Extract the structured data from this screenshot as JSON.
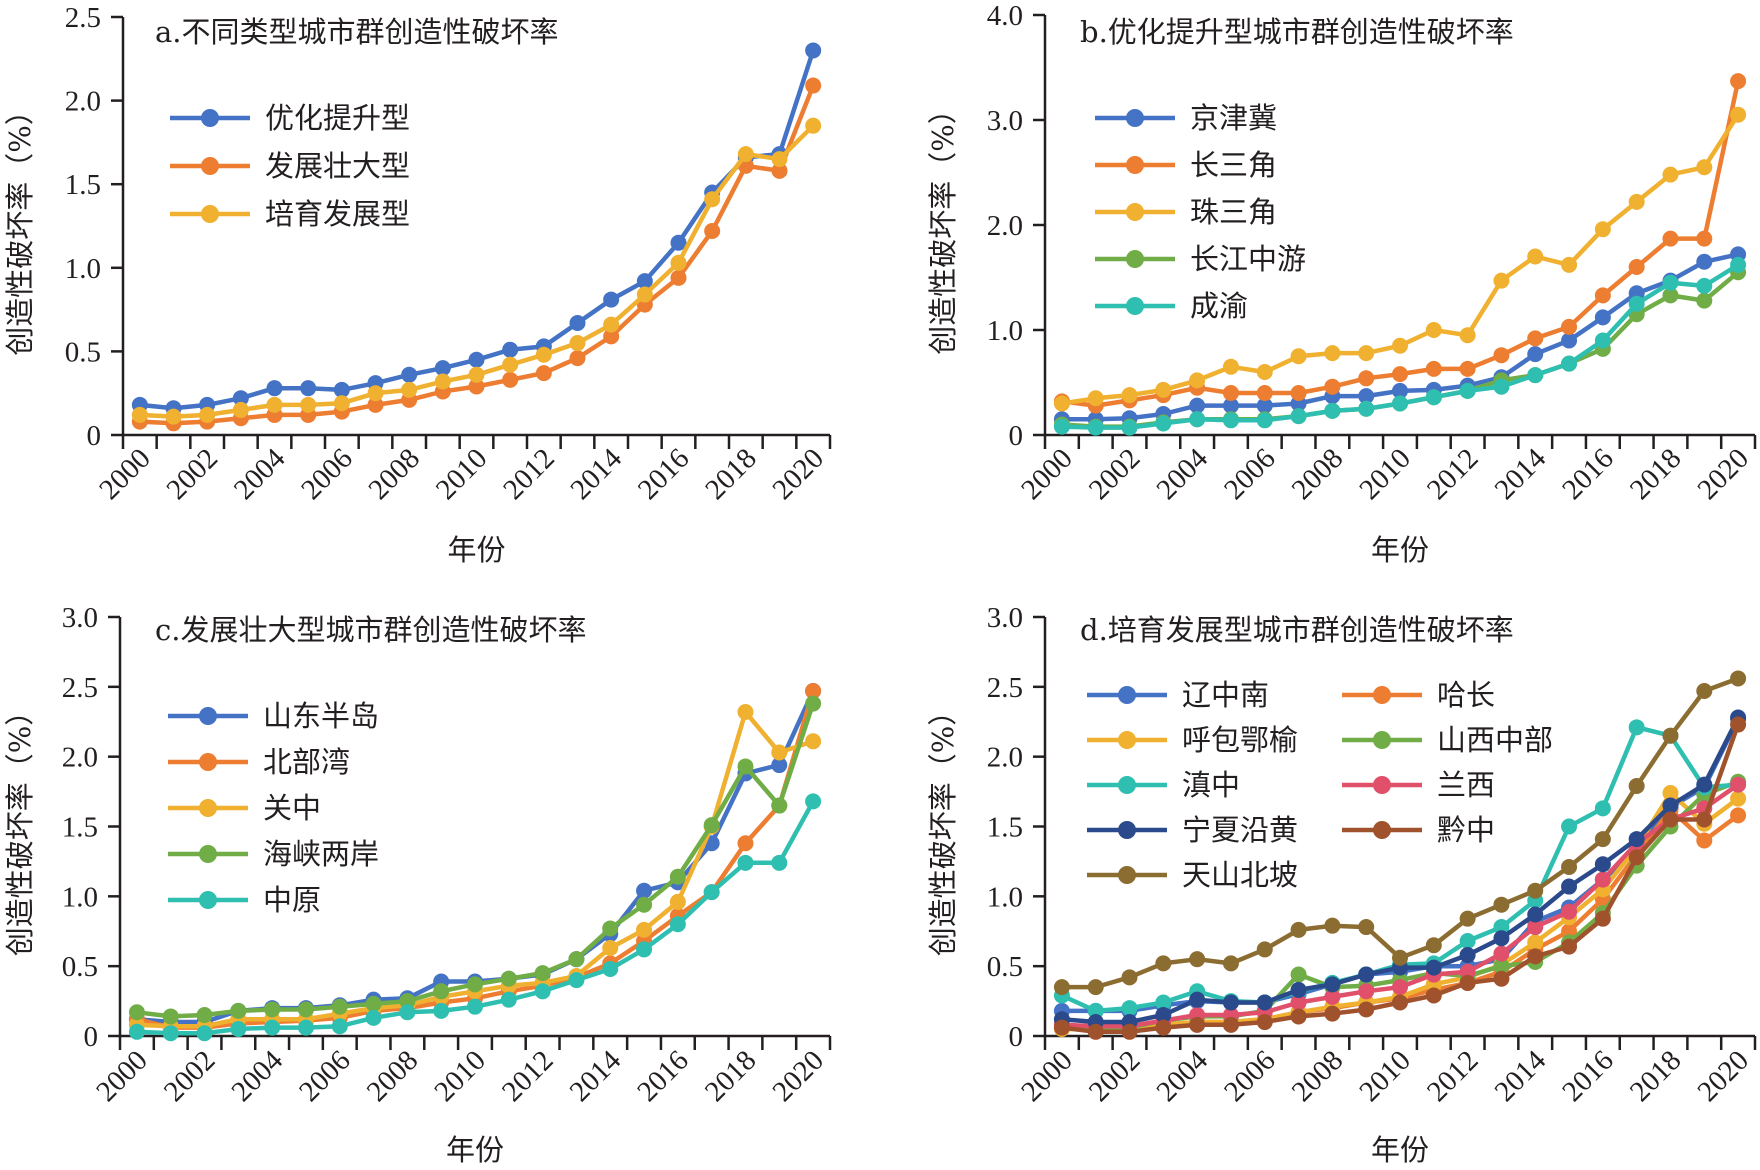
{
  "chart_data": [
    {
      "id": "a",
      "type": "line",
      "title": "a.不同类型城市群创造性破坏率",
      "xlabel": "年份",
      "ylabel": "创造性破坏率（%）",
      "ylim": [
        0,
        2.5
      ],
      "yticks": [
        0,
        0.5,
        1.0,
        1.5,
        2.0,
        2.5
      ],
      "ytick_labels": [
        "0",
        "0.5",
        "1.0",
        "1.5",
        "2.0",
        "2.5"
      ],
      "x": [
        2000,
        2001,
        2002,
        2003,
        2004,
        2005,
        2006,
        2007,
        2008,
        2009,
        2010,
        2011,
        2012,
        2013,
        2014,
        2015,
        2016,
        2017,
        2018,
        2019,
        2020
      ],
      "xtick_labels": [
        "2000",
        "2002",
        "2004",
        "2006",
        "2008",
        "2010",
        "2012",
        "2014",
        "2016",
        "2018",
        "2020"
      ],
      "grid": false,
      "legend_position": "top-left",
      "legend_columns": 1,
      "series": [
        {
          "name": "优化提升型",
          "color": "#4472c4",
          "values": [
            0.18,
            0.16,
            0.18,
            0.22,
            0.28,
            0.28,
            0.27,
            0.31,
            0.36,
            0.4,
            0.45,
            0.51,
            0.53,
            0.67,
            0.81,
            0.92,
            1.15,
            1.45,
            1.66,
            1.68,
            2.3
          ]
        },
        {
          "name": "发展壮大型",
          "color": "#ed7d31",
          "values": [
            0.08,
            0.07,
            0.08,
            0.1,
            0.12,
            0.12,
            0.14,
            0.18,
            0.21,
            0.26,
            0.29,
            0.33,
            0.37,
            0.46,
            0.59,
            0.78,
            0.94,
            1.22,
            1.61,
            1.58,
            2.09
          ]
        },
        {
          "name": "培育发展型",
          "color": "#f0b030",
          "values": [
            0.12,
            0.11,
            0.12,
            0.15,
            0.18,
            0.18,
            0.19,
            0.25,
            0.27,
            0.32,
            0.36,
            0.42,
            0.48,
            0.55,
            0.66,
            0.84,
            1.03,
            1.41,
            1.68,
            1.65,
            1.85
          ]
        }
      ]
    },
    {
      "id": "b",
      "type": "line",
      "title": "b.优化提升型城市群创造性破坏率",
      "xlabel": "年份",
      "ylabel": "创造性破坏率（%）",
      "ylim": [
        0,
        4.0
      ],
      "yticks": [
        0,
        1.0,
        2.0,
        3.0,
        4.0
      ],
      "ytick_labels": [
        "0",
        "1.0",
        "2.0",
        "3.0",
        "4.0"
      ],
      "x": [
        2000,
        2001,
        2002,
        2003,
        2004,
        2005,
        2006,
        2007,
        2008,
        2009,
        2010,
        2011,
        2012,
        2013,
        2014,
        2015,
        2016,
        2017,
        2018,
        2019,
        2020
      ],
      "xtick_labels": [
        "2000",
        "2002",
        "2004",
        "2006",
        "2008",
        "2010",
        "2012",
        "2014",
        "2016",
        "2018",
        "2020"
      ],
      "grid": false,
      "legend_position": "top-left",
      "legend_columns": 1,
      "series": [
        {
          "name": "京津冀",
          "color": "#4472c4",
          "values": [
            0.15,
            0.15,
            0.16,
            0.2,
            0.28,
            0.28,
            0.28,
            0.3,
            0.37,
            0.37,
            0.42,
            0.43,
            0.47,
            0.55,
            0.77,
            0.9,
            1.12,
            1.35,
            1.47,
            1.65,
            1.72
          ]
        },
        {
          "name": "长三角",
          "color": "#ed7d31",
          "values": [
            0.32,
            0.28,
            0.33,
            0.38,
            0.45,
            0.4,
            0.4,
            0.4,
            0.46,
            0.54,
            0.58,
            0.63,
            0.63,
            0.76,
            0.92,
            1.03,
            1.33,
            1.6,
            1.87,
            1.87,
            3.37
          ]
        },
        {
          "name": "珠三角",
          "color": "#f0b030",
          "values": [
            0.3,
            0.35,
            0.38,
            0.43,
            0.52,
            0.65,
            0.6,
            0.75,
            0.78,
            0.78,
            0.85,
            1.0,
            0.95,
            1.47,
            1.7,
            1.62,
            1.96,
            2.22,
            2.48,
            2.55,
            3.05
          ]
        },
        {
          "name": "长江中游",
          "color": "#70ad47",
          "values": [
            0.1,
            0.08,
            0.08,
            0.12,
            0.15,
            0.15,
            0.15,
            0.18,
            0.23,
            0.25,
            0.3,
            0.36,
            0.42,
            0.52,
            0.57,
            0.68,
            0.82,
            1.15,
            1.33,
            1.28,
            1.55
          ]
        },
        {
          "name": "成渝",
          "color": "#2ebfb0",
          "values": [
            0.08,
            0.07,
            0.07,
            0.11,
            0.15,
            0.14,
            0.14,
            0.18,
            0.23,
            0.25,
            0.3,
            0.36,
            0.42,
            0.46,
            0.57,
            0.68,
            0.9,
            1.25,
            1.45,
            1.42,
            1.62
          ]
        }
      ]
    },
    {
      "id": "c",
      "type": "line",
      "title": "c.发展壮大型城市群创造性破坏率",
      "xlabel": "年份",
      "ylabel": "创造性破坏率（%）",
      "ylim": [
        0,
        3.0
      ],
      "yticks": [
        0,
        0.5,
        1.0,
        1.5,
        2.0,
        2.5,
        3.0
      ],
      "ytick_labels": [
        "0",
        "0.5",
        "1.0",
        "1.5",
        "2.0",
        "2.5",
        "3.0"
      ],
      "x": [
        2000,
        2001,
        2002,
        2003,
        2004,
        2005,
        2006,
        2007,
        2008,
        2009,
        2010,
        2011,
        2012,
        2013,
        2014,
        2015,
        2016,
        2017,
        2018,
        2019,
        2020
      ],
      "xtick_labels": [
        "2000",
        "2002",
        "2004",
        "2006",
        "2008",
        "2010",
        "2012",
        "2014",
        "2016",
        "2018",
        "2020"
      ],
      "grid": false,
      "legend_position": "top-left",
      "legend_columns": 1,
      "series": [
        {
          "name": "山东半岛",
          "color": "#4472c4",
          "values": [
            0.12,
            0.1,
            0.1,
            0.18,
            0.2,
            0.2,
            0.22,
            0.26,
            0.27,
            0.39,
            0.39,
            0.41,
            0.44,
            0.55,
            0.73,
            1.04,
            1.1,
            1.38,
            1.88,
            1.94,
            2.47
          ]
        },
        {
          "name": "北部湾",
          "color": "#ed7d31",
          "values": [
            0.12,
            0.06,
            0.06,
            0.09,
            0.1,
            0.11,
            0.13,
            0.18,
            0.2,
            0.24,
            0.27,
            0.32,
            0.36,
            0.42,
            0.52,
            0.68,
            0.86,
            1.03,
            1.38,
            1.65,
            2.47
          ]
        },
        {
          "name": "关中",
          "color": "#f0b030",
          "values": [
            0.08,
            0.07,
            0.07,
            0.12,
            0.12,
            0.12,
            0.16,
            0.2,
            0.22,
            0.28,
            0.32,
            0.36,
            0.38,
            0.43,
            0.63,
            0.76,
            0.96,
            1.5,
            2.32,
            2.03,
            2.11
          ]
        },
        {
          "name": "海峡两岸",
          "color": "#70ad47",
          "values": [
            0.17,
            0.14,
            0.15,
            0.18,
            0.19,
            0.19,
            0.21,
            0.23,
            0.25,
            0.32,
            0.37,
            0.41,
            0.45,
            0.55,
            0.77,
            0.94,
            1.14,
            1.51,
            1.93,
            1.65,
            2.38
          ]
        },
        {
          "name": "中原",
          "color": "#2ebfb0",
          "values": [
            0.03,
            0.02,
            0.02,
            0.05,
            0.06,
            0.06,
            0.07,
            0.13,
            0.17,
            0.18,
            0.21,
            0.26,
            0.32,
            0.4,
            0.48,
            0.62,
            0.8,
            1.03,
            1.24,
            1.24,
            1.68
          ]
        }
      ]
    },
    {
      "id": "d",
      "type": "line",
      "title": "d.培育发展型城市群创造性破坏率",
      "xlabel": "年份",
      "ylabel": "创造性破坏率（%）",
      "ylim": [
        0,
        3.0
      ],
      "yticks": [
        0,
        0.5,
        1.0,
        1.5,
        2.0,
        2.5,
        3.0
      ],
      "ytick_labels": [
        "0",
        "0.5",
        "1.0",
        "1.5",
        "2.0",
        "2.5",
        "3.0"
      ],
      "x": [
        2000,
        2001,
        2002,
        2003,
        2004,
        2005,
        2006,
        2007,
        2008,
        2009,
        2010,
        2011,
        2012,
        2013,
        2014,
        2015,
        2016,
        2017,
        2018,
        2019,
        2020
      ],
      "xtick_labels": [
        "2000",
        "2002",
        "2004",
        "2006",
        "2008",
        "2010",
        "2012",
        "2014",
        "2016",
        "2018",
        "2020"
      ],
      "grid": false,
      "legend_position": "top-left",
      "legend_columns": 2,
      "series": [
        {
          "name": "辽中南",
          "color": "#4472c4",
          "values": [
            0.18,
            0.18,
            0.18,
            0.22,
            0.25,
            0.24,
            0.24,
            0.3,
            0.37,
            0.44,
            0.46,
            0.5,
            0.5,
            0.55,
            0.82,
            0.92,
            1.12,
            1.33,
            1.64,
            1.78,
            2.27
          ]
        },
        {
          "name": "哈长",
          "color": "#ed7d31",
          "values": [
            0.06,
            0.05,
            0.05,
            0.08,
            0.1,
            0.1,
            0.12,
            0.17,
            0.2,
            0.24,
            0.27,
            0.33,
            0.38,
            0.46,
            0.62,
            0.75,
            0.98,
            1.3,
            1.62,
            1.4,
            1.58
          ]
        },
        {
          "name": "呼包鄂榆",
          "color": "#f0b030",
          "values": [
            0.05,
            0.05,
            0.05,
            0.08,
            0.1,
            0.1,
            0.12,
            0.17,
            0.21,
            0.24,
            0.28,
            0.37,
            0.42,
            0.51,
            0.67,
            0.85,
            1.05,
            1.35,
            1.74,
            1.52,
            1.7
          ]
        },
        {
          "name": "山西中部",
          "color": "#70ad47",
          "values": [
            0.08,
            0.06,
            0.06,
            0.11,
            0.14,
            0.14,
            0.18,
            0.44,
            0.35,
            0.36,
            0.4,
            0.45,
            0.43,
            0.5,
            0.53,
            0.67,
            0.88,
            1.22,
            1.5,
            1.73,
            1.82
          ]
        },
        {
          "name": "滇中",
          "color": "#2ebfb0",
          "values": [
            0.29,
            0.18,
            0.2,
            0.24,
            0.32,
            0.25,
            0.24,
            0.32,
            0.38,
            0.44,
            0.51,
            0.52,
            0.68,
            0.78,
            0.97,
            1.5,
            1.63,
            2.21,
            2.15,
            1.78,
            1.8
          ]
        },
        {
          "name": "兰西",
          "color": "#e0506a",
          "values": [
            0.08,
            0.07,
            0.07,
            0.11,
            0.15,
            0.15,
            0.17,
            0.24,
            0.28,
            0.32,
            0.35,
            0.44,
            0.46,
            0.59,
            0.78,
            0.89,
            1.12,
            1.38,
            1.55,
            1.63,
            1.8
          ]
        },
        {
          "name": "宁夏沿黄",
          "color": "#2a4a8c",
          "values": [
            0.12,
            0.1,
            0.1,
            0.15,
            0.26,
            0.24,
            0.24,
            0.33,
            0.37,
            0.44,
            0.49,
            0.49,
            0.58,
            0.7,
            0.87,
            1.07,
            1.23,
            1.41,
            1.65,
            1.8,
            2.28
          ]
        },
        {
          "name": "黔中",
          "color": "#a0522d",
          "values": [
            0.06,
            0.03,
            0.03,
            0.06,
            0.08,
            0.08,
            0.1,
            0.14,
            0.16,
            0.19,
            0.24,
            0.29,
            0.38,
            0.41,
            0.57,
            0.64,
            0.84,
            1.28,
            1.55,
            1.55,
            2.23
          ]
        },
        {
          "name": "天山北坡",
          "color": "#8c6d31",
          "values": [
            0.35,
            0.35,
            0.42,
            0.52,
            0.55,
            0.52,
            0.62,
            0.76,
            0.79,
            0.78,
            0.56,
            0.65,
            0.84,
            0.94,
            1.04,
            1.21,
            1.41,
            1.79,
            2.15,
            2.47,
            2.56
          ]
        }
      ]
    }
  ]
}
